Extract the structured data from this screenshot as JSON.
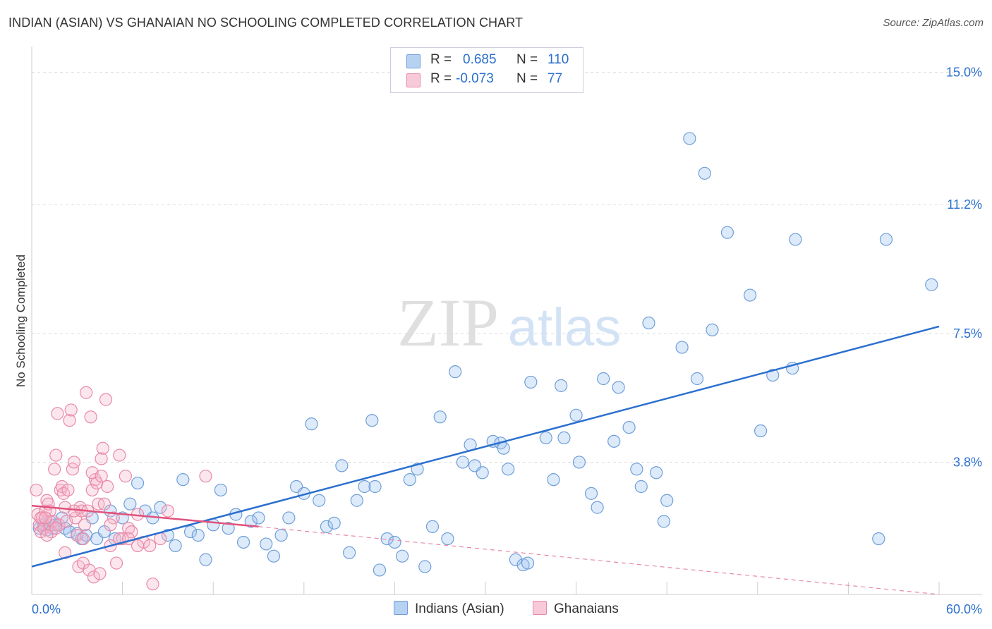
{
  "title": "INDIAN (ASIAN) VS GHANAIAN NO SCHOOLING COMPLETED CORRELATION CHART",
  "source": "Source: ZipAtlas.com",
  "watermark": {
    "zip": "ZIP",
    "atlas": "atlas"
  },
  "legend": [
    {
      "r_label": "R =",
      "r_value": "0.685",
      "n_label": "N =",
      "n_value": "110",
      "color": "#9fc3f0",
      "border": "#6f9fd8"
    },
    {
      "r_label": "R =",
      "r_value": "-0.073",
      "n_label": "N =",
      "n_value": "77",
      "color": "#f6b8cc",
      "border": "#e889a8"
    }
  ],
  "bottom_legend": [
    {
      "label": "Indians (Asian)",
      "color": "#b7d1f3",
      "border": "#6f9fd8"
    },
    {
      "label": "Ghanaians",
      "color": "#f8c9d8",
      "border": "#e889a8"
    }
  ],
  "chart_data": {
    "type": "scatter",
    "title": "INDIAN (ASIAN) VS GHANAIAN NO SCHOOLING COMPLETED CORRELATION CHART",
    "ylabel": "No Schooling Completed",
    "xlabel": "",
    "xlim": [
      0,
      60
    ],
    "ylim": [
      0,
      15.5
    ],
    "x_tick_labels": [
      "0.0%",
      "60.0%"
    ],
    "y_ticks": [
      3.8,
      7.5,
      11.2,
      15.0
    ],
    "y_tick_labels": [
      "3.8%",
      "7.5%",
      "11.2%",
      "15.0%"
    ],
    "grid": true,
    "series": [
      {
        "name": "Indians (Asian)",
        "color": "#6f9fd8",
        "fill": "rgba(159,195,240,0.35)",
        "trend": {
          "x0": 0,
          "y0": 0.8,
          "x1": 60,
          "y1": 7.7,
          "color": "#2a6fcf"
        },
        "points": [
          [
            0.5,
            1.9
          ],
          [
            0.8,
            2.0
          ],
          [
            1.0,
            1.85
          ],
          [
            1.2,
            2.1
          ],
          [
            1.4,
            1.9
          ],
          [
            1.6,
            2.0
          ],
          [
            2.0,
            2.2
          ],
          [
            2.2,
            1.9
          ],
          [
            2.5,
            1.8
          ],
          [
            3.0,
            1.75
          ],
          [
            3.3,
            1.6
          ],
          [
            3.6,
            1.7
          ],
          [
            4.0,
            2.2
          ],
          [
            4.3,
            1.6
          ],
          [
            4.8,
            1.8
          ],
          [
            5.2,
            2.4
          ],
          [
            5.5,
            1.6
          ],
          [
            6.0,
            2.2
          ],
          [
            6.5,
            2.6
          ],
          [
            7.0,
            3.2
          ],
          [
            7.5,
            2.4
          ],
          [
            8.0,
            2.2
          ],
          [
            8.5,
            2.5
          ],
          [
            9.0,
            1.7
          ],
          [
            9.5,
            1.4
          ],
          [
            10.0,
            3.3
          ],
          [
            10.5,
            1.8
          ],
          [
            11.0,
            1.7
          ],
          [
            11.5,
            1.0
          ],
          [
            12.0,
            2.0
          ],
          [
            12.5,
            3.0
          ],
          [
            13.0,
            1.9
          ],
          [
            13.5,
            2.3
          ],
          [
            14.0,
            1.5
          ],
          [
            14.5,
            2.1
          ],
          [
            15.0,
            2.2
          ],
          [
            15.5,
            1.45
          ],
          [
            16.0,
            1.1
          ],
          [
            16.5,
            1.7
          ],
          [
            17.0,
            2.2
          ],
          [
            17.5,
            3.1
          ],
          [
            18.0,
            2.9
          ],
          [
            18.5,
            4.9
          ],
          [
            19.0,
            2.7
          ],
          [
            19.5,
            1.95
          ],
          [
            20.0,
            2.05
          ],
          [
            20.5,
            3.7
          ],
          [
            21.0,
            1.2
          ],
          [
            21.5,
            2.7
          ],
          [
            22.0,
            3.1
          ],
          [
            22.5,
            5.0
          ],
          [
            22.7,
            3.1
          ],
          [
            23.0,
            0.7
          ],
          [
            23.5,
            1.6
          ],
          [
            24.0,
            1.5
          ],
          [
            24.5,
            1.1
          ],
          [
            25.0,
            3.3
          ],
          [
            25.5,
            3.6
          ],
          [
            26.0,
            0.8
          ],
          [
            26.5,
            1.95
          ],
          [
            27.0,
            5.1
          ],
          [
            27.5,
            1.6
          ],
          [
            28.0,
            6.4
          ],
          [
            28.5,
            3.8
          ],
          [
            29.0,
            4.3
          ],
          [
            29.3,
            3.7
          ],
          [
            29.8,
            3.5
          ],
          [
            30.5,
            4.4
          ],
          [
            31.0,
            4.35
          ],
          [
            31.2,
            4.2
          ],
          [
            31.5,
            3.6
          ],
          [
            32.0,
            1.0
          ],
          [
            32.5,
            0.85
          ],
          [
            32.8,
            0.9
          ],
          [
            33.0,
            6.1
          ],
          [
            34.0,
            4.5
          ],
          [
            34.5,
            3.3
          ],
          [
            35.0,
            6.0
          ],
          [
            35.2,
            4.5
          ],
          [
            36.0,
            5.15
          ],
          [
            36.2,
            3.8
          ],
          [
            37.0,
            2.9
          ],
          [
            37.4,
            2.5
          ],
          [
            37.8,
            6.2
          ],
          [
            38.5,
            4.4
          ],
          [
            38.8,
            5.95
          ],
          [
            39.5,
            4.8
          ],
          [
            40.0,
            3.6
          ],
          [
            40.3,
            3.1
          ],
          [
            40.8,
            7.8
          ],
          [
            41.3,
            3.5
          ],
          [
            41.8,
            2.1
          ],
          [
            42.0,
            2.7
          ],
          [
            43.0,
            7.1
          ],
          [
            43.5,
            13.1
          ],
          [
            44.0,
            6.2
          ],
          [
            44.5,
            12.1
          ],
          [
            45.0,
            7.6
          ],
          [
            46.0,
            10.4
          ],
          [
            47.5,
            8.6
          ],
          [
            48.2,
            4.7
          ],
          [
            49.0,
            6.3
          ],
          [
            50.3,
            6.5
          ],
          [
            50.5,
            10.2
          ],
          [
            56.0,
            1.6
          ],
          [
            56.5,
            10.2
          ],
          [
            59.5,
            8.9
          ]
        ]
      },
      {
        "name": "Ghanaians",
        "color": "#e889a8",
        "fill": "rgba(246,184,204,0.35)",
        "trend": {
          "x0": 0,
          "y0": 2.55,
          "x1": 15,
          "y1": 1.95,
          "color": "#e0527e"
        },
        "trend_dashed": {
          "x0": 15,
          "y0": 1.95,
          "x1": 60,
          "y1": 0.0
        },
        "points": [
          [
            0.3,
            3.0
          ],
          [
            0.4,
            2.3
          ],
          [
            0.5,
            2.0
          ],
          [
            0.6,
            1.8
          ],
          [
            0.7,
            2.2
          ],
          [
            0.8,
            1.9
          ],
          [
            0.9,
            2.4
          ],
          [
            1.0,
            2.7
          ],
          [
            1.1,
            2.6
          ],
          [
            1.2,
            2.0
          ],
          [
            1.3,
            1.8
          ],
          [
            1.4,
            2.1
          ],
          [
            1.5,
            3.6
          ],
          [
            1.6,
            4.0
          ],
          [
            1.7,
            5.2
          ],
          [
            1.8,
            2.0
          ],
          [
            1.9,
            3.0
          ],
          [
            2.0,
            3.1
          ],
          [
            2.1,
            2.9
          ],
          [
            2.2,
            1.2
          ],
          [
            2.3,
            2.1
          ],
          [
            2.4,
            3.0
          ],
          [
            2.5,
            5.0
          ],
          [
            2.6,
            5.3
          ],
          [
            2.7,
            3.6
          ],
          [
            2.8,
            3.8
          ],
          [
            2.9,
            2.2
          ],
          [
            3.0,
            1.7
          ],
          [
            3.1,
            0.8
          ],
          [
            3.2,
            2.5
          ],
          [
            3.3,
            2.4
          ],
          [
            3.4,
            0.9
          ],
          [
            3.5,
            2.0
          ],
          [
            3.6,
            5.8
          ],
          [
            3.7,
            2.4
          ],
          [
            3.8,
            0.7
          ],
          [
            3.9,
            5.1
          ],
          [
            4.0,
            3.0
          ],
          [
            4.1,
            0.5
          ],
          [
            4.2,
            3.3
          ],
          [
            4.3,
            3.2
          ],
          [
            4.4,
            2.6
          ],
          [
            4.5,
            0.6
          ],
          [
            4.6,
            3.9
          ],
          [
            4.7,
            4.2
          ],
          [
            4.8,
            2.6
          ],
          [
            4.9,
            5.6
          ],
          [
            5.0,
            3.1
          ],
          [
            5.2,
            1.4
          ],
          [
            5.4,
            2.2
          ],
          [
            5.6,
            0.9
          ],
          [
            5.8,
            4.0
          ],
          [
            6.0,
            1.6
          ],
          [
            6.2,
            3.4
          ],
          [
            6.4,
            1.9
          ],
          [
            6.6,
            1.8
          ],
          [
            7.0,
            2.3
          ],
          [
            7.4,
            1.5
          ],
          [
            7.8,
            1.4
          ],
          [
            8.0,
            0.3
          ],
          [
            8.5,
            1.6
          ],
          [
            9.0,
            2.4
          ],
          [
            11.5,
            3.4
          ],
          [
            1.2,
            2.4
          ],
          [
            0.6,
            2.2
          ],
          [
            0.9,
            2.2
          ],
          [
            1.6,
            1.9
          ],
          [
            2.2,
            2.5
          ],
          [
            2.8,
            2.4
          ],
          [
            3.4,
            1.6
          ],
          [
            4.0,
            3.5
          ],
          [
            4.6,
            3.4
          ],
          [
            5.2,
            2.0
          ],
          [
            5.8,
            1.6
          ],
          [
            6.4,
            1.6
          ],
          [
            7.0,
            1.4
          ],
          [
            1.0,
            1.7
          ]
        ]
      }
    ]
  }
}
